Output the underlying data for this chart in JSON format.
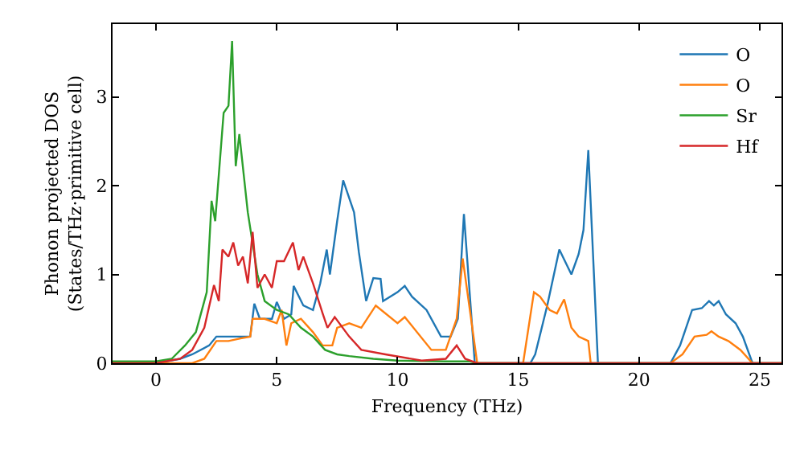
{
  "chart_data": {
    "type": "line",
    "xlabel": "Frequency (THz)",
    "ylabel": "Phonon projected DOS\n(States/THz·primitive cell)",
    "xlim": [
      -1.8,
      25.9
    ],
    "ylim": [
      0,
      3.82
    ],
    "xticks": [
      0,
      5,
      10,
      15,
      20,
      25
    ],
    "yticks": [
      0,
      1,
      2,
      3
    ],
    "grid": false,
    "legend": "top right",
    "marker": "none",
    "line_style": "solid",
    "series": [
      {
        "name": "O",
        "color": "#1f77b4",
        "x": [
          -1.8,
          0,
          1,
          1.5,
          2.2,
          2.5,
          3,
          3.5,
          3.9,
          4.07,
          4.3,
          4.8,
          5,
          5.3,
          5.6,
          5.7,
          6.1,
          6.5,
          6.8,
          7.07,
          7.2,
          7.5,
          7.75,
          8.2,
          8.4,
          8.7,
          9,
          9.3,
          9.4,
          10,
          10.3,
          10.6,
          11.2,
          11.8,
          12.2,
          12.5,
          12.75,
          13.2,
          15.5,
          15.7,
          16.2,
          16.7,
          17.2,
          17.5,
          17.7,
          17.9,
          18.3,
          21.3,
          21.7,
          22.2,
          22.6,
          22.9,
          23.1,
          23.3,
          23.6,
          24,
          24.3,
          24.7,
          25.9
        ],
        "values": [
          0,
          0,
          0.05,
          0.1,
          0.2,
          0.3,
          0.3,
          0.3,
          0.3,
          0.67,
          0.5,
          0.5,
          0.69,
          0.5,
          0.55,
          0.87,
          0.65,
          0.6,
          0.9,
          1.28,
          1,
          1.6,
          2.06,
          1.7,
          1.25,
          0.7,
          0.96,
          0.95,
          0.7,
          0.8,
          0.87,
          0.75,
          0.6,
          0.3,
          0.3,
          0.5,
          1.68,
          0,
          0,
          0.1,
          0.65,
          1.28,
          1,
          1.23,
          1.5,
          2.4,
          0,
          0,
          0.2,
          0.6,
          0.62,
          0.7,
          0.65,
          0.7,
          0.55,
          0.45,
          0.3,
          0,
          0
        ]
      },
      {
        "name": "O",
        "color": "#ff7f0e",
        "x": [
          -1.8,
          0,
          1.5,
          2,
          2.5,
          3,
          3.5,
          3.9,
          4,
          4.5,
          5,
          5.2,
          5.4,
          5.6,
          6,
          6.5,
          6.9,
          7.3,
          7.5,
          8,
          8.5,
          9.1,
          10,
          10.3,
          11.4,
          12,
          12.45,
          12.7,
          13.3,
          15.2,
          15.65,
          15.9,
          16.3,
          16.6,
          16.9,
          17.2,
          17.5,
          17.9,
          18,
          21.3,
          21.8,
          22.3,
          22.8,
          23,
          23.3,
          23.7,
          24.2,
          24.7,
          25.9
        ],
        "values": [
          0,
          0,
          0,
          0.05,
          0.25,
          0.25,
          0.28,
          0.3,
          0.5,
          0.5,
          0.45,
          0.6,
          0.2,
          0.45,
          0.5,
          0.35,
          0.2,
          0.2,
          0.4,
          0.45,
          0.4,
          0.65,
          0.45,
          0.52,
          0.15,
          0.15,
          0.5,
          1.18,
          0,
          0,
          0.8,
          0.75,
          0.6,
          0.56,
          0.72,
          0.4,
          0.3,
          0.25,
          0,
          0,
          0.1,
          0.3,
          0.32,
          0.36,
          0.3,
          0.25,
          0.15,
          0,
          0
        ]
      },
      {
        "name": "Sr",
        "color": "#2ca02c",
        "x": [
          -1.8,
          0,
          0.65,
          1.2,
          1.65,
          2.1,
          2.3,
          2.45,
          2.8,
          3,
          3.15,
          3.3,
          3.45,
          3.8,
          4.2,
          4.5,
          5,
          5.5,
          6,
          6.5,
          7,
          7.5,
          8,
          9,
          10,
          12,
          13,
          13.3,
          25.9
        ],
        "values": [
          0.02,
          0.02,
          0.05,
          0.2,
          0.35,
          0.8,
          1.83,
          1.6,
          2.82,
          2.9,
          3.63,
          2.22,
          2.58,
          1.7,
          1,
          0.7,
          0.6,
          0.55,
          0.4,
          0.3,
          0.15,
          0.1,
          0.08,
          0.05,
          0.03,
          0.02,
          0.02,
          0,
          0
        ]
      },
      {
        "name": "Hf",
        "color": "#d62728",
        "x": [
          -1.8,
          0,
          1,
          1.5,
          2,
          2.4,
          2.6,
          2.75,
          3,
          3.2,
          3.4,
          3.6,
          3.8,
          4,
          4.2,
          4.5,
          4.8,
          5,
          5.3,
          5.67,
          5.9,
          6.1,
          6.5,
          6.9,
          7.1,
          7.4,
          8,
          8.5,
          9.5,
          11,
          12,
          12.45,
          12.8,
          13.3,
          25.9
        ],
        "values": [
          0,
          0,
          0.05,
          0.15,
          0.4,
          0.88,
          0.7,
          1.28,
          1.2,
          1.36,
          1.1,
          1.2,
          0.9,
          1.48,
          0.85,
          1,
          0.85,
          1.15,
          1.15,
          1.36,
          1.05,
          1.2,
          0.9,
          0.56,
          0.4,
          0.52,
          0.3,
          0.15,
          0.1,
          0.03,
          0.05,
          0.2,
          0.05,
          0,
          0
        ]
      }
    ]
  }
}
